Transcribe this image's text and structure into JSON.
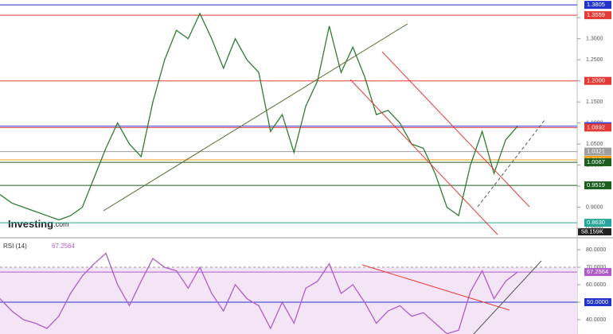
{
  "chart_data": [
    {
      "type": "line",
      "logo": "Investing",
      "logo_suffix": ".com",
      "color": "#2e7d32",
      "values": [
        0.93,
        0.91,
        0.9,
        0.89,
        0.88,
        0.87,
        0.88,
        0.9,
        0.97,
        1.04,
        1.1,
        1.05,
        1.02,
        1.15,
        1.25,
        1.32,
        1.3,
        1.36,
        1.3,
        1.23,
        1.3,
        1.25,
        1.22,
        1.08,
        1.12,
        1.03,
        1.14,
        1.2,
        1.33,
        1.22,
        1.28,
        1.21,
        1.12,
        1.13,
        1.1,
        1.05,
        1.04,
        0.98,
        0.9,
        0.88,
        1.0,
        1.08,
        0.98,
        1.06,
        1.092
      ],
      "ylim": [
        0.835,
        1.392
      ],
      "yticks": [
        {
          "value": 0.85,
          "label": "0.8500"
        },
        {
          "value": 0.9,
          "label": "0.9000"
        },
        {
          "value": 0.95,
          "label": "0.9500"
        },
        {
          "value": 1.0,
          "label": "1.0000"
        },
        {
          "value": 1.05,
          "label": "1.0500"
        },
        {
          "value": 1.1,
          "label": "1.1000"
        },
        {
          "value": 1.15,
          "label": "1.1500"
        },
        {
          "value": 1.2,
          "label": "1.2000"
        },
        {
          "value": 1.25,
          "label": "1.2500"
        },
        {
          "value": 1.3,
          "label": "1.3000"
        },
        {
          "value": 1.35,
          "label": "1.3500"
        }
      ],
      "levels": [
        {
          "value": 1.3805,
          "label": "1.3805",
          "color": "#2233cc"
        },
        {
          "value": 1.3559,
          "label": "1.3559",
          "color": "#e53935"
        },
        {
          "value": 1.2,
          "label": "1.2000",
          "color": "#e53935"
        },
        {
          "value": 1.0924,
          "label": "1.0924",
          "color": "#3344dd"
        },
        {
          "value": 1.0892,
          "label": "1.0892",
          "color": "#e53935"
        },
        {
          "value": 1.0321,
          "label": "1.0321",
          "color": "#9e9e9e"
        },
        {
          "value": 1.0124,
          "label": "1.0124",
          "color": "#f39c12"
        },
        {
          "value": 1.0067,
          "label": "1.0067",
          "color": "#1b5e20"
        },
        {
          "value": 0.9519,
          "label": "0.9519",
          "color": "#1b5e20"
        },
        {
          "value": 0.863,
          "label": "0.8630",
          "color": "#26a69a"
        }
      ],
      "volume_label": "58.159K"
    },
    {
      "type": "line",
      "title": "RSI (14)",
      "current_label": "67.2564",
      "color": "#b05cc8",
      "values": [
        52,
        45,
        40,
        38,
        35,
        42,
        55,
        65,
        72,
        78,
        60,
        48,
        62,
        75,
        70,
        68,
        58,
        70,
        55,
        45,
        60,
        52,
        48,
        35,
        50,
        38,
        58,
        62,
        72,
        55,
        60,
        50,
        38,
        45,
        48,
        42,
        44,
        38,
        32,
        34,
        56,
        68,
        52,
        62,
        67.2564
      ],
      "ylim": [
        31.8,
        85.5
      ],
      "yticks": [
        {
          "value": 40,
          "label": "40.0000"
        },
        {
          "value": 50,
          "label": "50.0000"
        },
        {
          "value": 60,
          "label": "60.0000"
        },
        {
          "value": 70,
          "label": "70.0000"
        },
        {
          "value": 80,
          "label": "80.0000"
        }
      ],
      "levels": [
        {
          "value": 67.2564,
          "label": "67.2564",
          "color": "#b05cc8"
        },
        {
          "value": 50,
          "label": "50.0000",
          "color": "#2233cc"
        }
      ]
    }
  ]
}
